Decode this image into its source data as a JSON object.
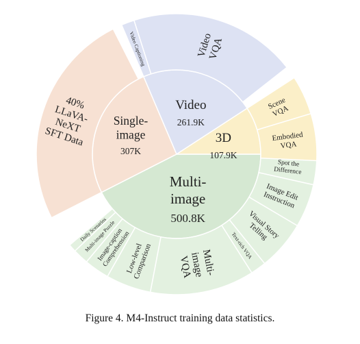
{
  "chart_data": {
    "type": "sunburst",
    "caption": "Figure 4. M4-Instruct training data statistics.",
    "inner": [
      {
        "name": "Multi-image",
        "label_lines": [
          "Multi-",
          "image"
        ],
        "value_label": "500.8K",
        "value": 500.8,
        "color": "#d5e8d2"
      },
      {
        "name": "Single-image",
        "label_lines": [
          "Single-",
          "image"
        ],
        "value_label": "307K",
        "value": 307,
        "color": "#f7e1d3"
      },
      {
        "name": "Video",
        "label_lines": [
          "Video"
        ],
        "value_label": "261.9K",
        "value": 261.9,
        "color": "#dde2f3"
      },
      {
        "name": "3D",
        "label_lines": [
          "3D"
        ],
        "value_label": "107.9K",
        "value": 107.9,
        "color": "#fbefc8"
      }
    ],
    "outer": [
      {
        "parent": "Multi-image",
        "name": "Spot the Difference",
        "label_lines": [
          "Spot the",
          "Difference"
        ],
        "share": 0.035,
        "color": "#e3f1e0"
      },
      {
        "parent": "Multi-image",
        "name": "Image Edit Instruction",
        "label_lines": [
          "Image Edit",
          "Instruction"
        ],
        "share": 0.05,
        "color": "#e3f1e0"
      },
      {
        "parent": "Multi-image",
        "name": "Visual Story Telling",
        "label_lines": [
          "Visual Story",
          "Telling"
        ],
        "share": 0.057,
        "color": "#e3f1e0"
      },
      {
        "parent": "Multi-image",
        "name": "Text-rich VQA",
        "label_lines": [
          "Text-rich VQA"
        ],
        "share": 0.018,
        "color": "#e3f1e0"
      },
      {
        "parent": "Multi-image",
        "name": "Multi-image VQA",
        "label_lines": [
          "Multi-",
          "image",
          "VQA"
        ],
        "share": 0.12,
        "color": "#e3f1e0"
      },
      {
        "parent": "Multi-image",
        "name": "Low-level Comparison",
        "label_lines": [
          "Low-level",
          "Comparison"
        ],
        "share": 0.052,
        "color": "#e3f1e0"
      },
      {
        "parent": "Multi-image",
        "name": "Image-caption Comprehension",
        "label_lines": [
          "Image-caption",
          "Comprehension"
        ],
        "share": 0.029,
        "color": "#e3f1e0"
      },
      {
        "parent": "Multi-image",
        "name": "Multi-image Puzzle",
        "label_lines": [
          "Multi-image Puzzle"
        ],
        "share": 0.018,
        "color": "#e3f1e0"
      },
      {
        "parent": "Multi-image",
        "name": "Daily Scenarios",
        "label_lines": [
          "Daily Scenarios"
        ],
        "share": 0.009,
        "color": "#e3f1e0"
      },
      {
        "parent": "Single-image",
        "name": "40% LLaVA-NeXT SFT Data",
        "label_lines": [
          "40%",
          "LLaVA-",
          "NeXT",
          "SFT Data"
        ],
        "share": 0.25,
        "color": "#f7e1d3"
      },
      {
        "parent": "Video",
        "name": "Video Captioning",
        "label_lines": [
          "Video Captioning"
        ],
        "share": 0.015,
        "color": "#dde2f3"
      },
      {
        "parent": "Video",
        "name": "Video VQA",
        "label_lines": [
          "Video",
          "VQA"
        ],
        "share": 0.193,
        "color": "#dde2f3"
      },
      {
        "parent": "3D",
        "name": "Scene VQA",
        "label_lines": [
          "Scene",
          "VQA"
        ],
        "share": 0.045,
        "color": "#fbefc8"
      },
      {
        "parent": "3D",
        "name": "Embodied VQA",
        "label_lines": [
          "Embodied",
          "VQA"
        ],
        "share": 0.054,
        "color": "#fbefc8"
      }
    ]
  }
}
